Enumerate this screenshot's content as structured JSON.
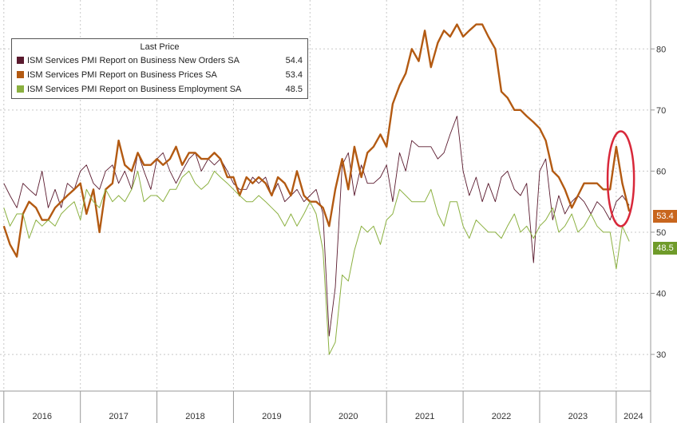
{
  "legend": {
    "title": "Last Price",
    "items": [
      {
        "name": "ISM Services PMI Report on Business New Orders SA",
        "value": "54.4",
        "color": "#5a1a2e"
      },
      {
        "name": "ISM Services PMI Report on Business Prices SA",
        "value": "53.4",
        "color": "#b35a12"
      },
      {
        "name": "ISM Services PMI Report on Business Employment SA",
        "value": "48.5",
        "color": "#8bb040"
      }
    ]
  },
  "tags": {
    "prices": {
      "text": "53.4",
      "color": "#c8661e"
    },
    "employment": {
      "text": "48.5",
      "color": "#6f9b2a"
    }
  },
  "highlight": {
    "color": "#d8283a",
    "x_from": 2023.95,
    "x_to": 2024.17,
    "y_from": 51.5,
    "y_to": 66
  },
  "chart_data": {
    "type": "line",
    "title": "",
    "xlabel": "",
    "ylabel": "",
    "xlim": [
      2015.95,
      2024.45
    ],
    "ylim": [
      24,
      88
    ],
    "yticks": [
      30,
      40,
      50,
      60,
      70,
      80
    ],
    "xticks": [
      "2016",
      "2017",
      "2018",
      "2019",
      "2020",
      "2021",
      "2022",
      "2023",
      "2024"
    ],
    "grid": true,
    "legend_position": "top-left",
    "series": [
      {
        "name": "ISM Services PMI Report on Business New Orders SA",
        "color": "#5a1a2e",
        "width": 0.9,
        "points": [
          [
            2016.0,
            58
          ],
          [
            2016.08,
            56
          ],
          [
            2016.17,
            54
          ],
          [
            2016.25,
            58
          ],
          [
            2016.33,
            57
          ],
          [
            2016.42,
            56
          ],
          [
            2016.5,
            60
          ],
          [
            2016.58,
            54
          ],
          [
            2016.67,
            57
          ],
          [
            2016.75,
            54
          ],
          [
            2016.83,
            58
          ],
          [
            2016.92,
            57
          ],
          [
            2017.0,
            60
          ],
          [
            2017.08,
            61
          ],
          [
            2017.17,
            58
          ],
          [
            2017.25,
            57
          ],
          [
            2017.33,
            60
          ],
          [
            2017.42,
            61
          ],
          [
            2017.5,
            58
          ],
          [
            2017.58,
            60
          ],
          [
            2017.67,
            57
          ],
          [
            2017.75,
            63
          ],
          [
            2017.83,
            60
          ],
          [
            2017.92,
            57
          ],
          [
            2018.0,
            62
          ],
          [
            2018.08,
            63
          ],
          [
            2018.17,
            60
          ],
          [
            2018.25,
            58
          ],
          [
            2018.33,
            60
          ],
          [
            2018.42,
            62
          ],
          [
            2018.5,
            63
          ],
          [
            2018.58,
            60
          ],
          [
            2018.67,
            62
          ],
          [
            2018.75,
            61
          ],
          [
            2018.83,
            62
          ],
          [
            2018.92,
            60
          ],
          [
            2019.0,
            58
          ],
          [
            2019.08,
            57
          ],
          [
            2019.17,
            57
          ],
          [
            2019.25,
            59
          ],
          [
            2019.33,
            58
          ],
          [
            2019.42,
            59
          ],
          [
            2019.5,
            56
          ],
          [
            2019.58,
            58
          ],
          [
            2019.67,
            55
          ],
          [
            2019.75,
            56
          ],
          [
            2019.83,
            57
          ],
          [
            2019.92,
            55
          ],
          [
            2020.0,
            56
          ],
          [
            2020.08,
            57
          ],
          [
            2020.17,
            53
          ],
          [
            2020.25,
            33
          ],
          [
            2020.33,
            41
          ],
          [
            2020.42,
            61
          ],
          [
            2020.5,
            63
          ],
          [
            2020.58,
            56
          ],
          [
            2020.67,
            61
          ],
          [
            2020.75,
            58
          ],
          [
            2020.83,
            58
          ],
          [
            2020.92,
            59
          ],
          [
            2021.0,
            61
          ],
          [
            2021.08,
            55
          ],
          [
            2021.17,
            63
          ],
          [
            2021.25,
            60
          ],
          [
            2021.33,
            65
          ],
          [
            2021.42,
            64
          ],
          [
            2021.5,
            64
          ],
          [
            2021.58,
            64
          ],
          [
            2021.67,
            62
          ],
          [
            2021.75,
            63
          ],
          [
            2021.83,
            66
          ],
          [
            2021.92,
            69
          ],
          [
            2022.0,
            60
          ],
          [
            2022.08,
            56
          ],
          [
            2022.17,
            59
          ],
          [
            2022.25,
            55
          ],
          [
            2022.33,
            58
          ],
          [
            2022.42,
            55
          ],
          [
            2022.5,
            59
          ],
          [
            2022.58,
            60
          ],
          [
            2022.67,
            57
          ],
          [
            2022.75,
            56
          ],
          [
            2022.83,
            58
          ],
          [
            2022.92,
            45
          ],
          [
            2023.0,
            60
          ],
          [
            2023.08,
            62
          ],
          [
            2023.17,
            52
          ],
          [
            2023.25,
            56
          ],
          [
            2023.33,
            53
          ],
          [
            2023.42,
            55
          ],
          [
            2023.5,
            56
          ],
          [
            2023.58,
            55
          ],
          [
            2023.67,
            53
          ],
          [
            2023.75,
            55
          ],
          [
            2023.83,
            54
          ],
          [
            2023.92,
            52
          ],
          [
            2024.0,
            55
          ],
          [
            2024.08,
            56
          ],
          [
            2024.17,
            54.4
          ]
        ]
      },
      {
        "name": "ISM Services PMI Report on Business Prices SA",
        "color": "#b35a12",
        "width": 2.4,
        "points": [
          [
            2016.0,
            51
          ],
          [
            2016.08,
            48
          ],
          [
            2016.17,
            46
          ],
          [
            2016.25,
            53
          ],
          [
            2016.33,
            55
          ],
          [
            2016.42,
            54
          ],
          [
            2016.5,
            52
          ],
          [
            2016.58,
            52
          ],
          [
            2016.67,
            54
          ],
          [
            2016.75,
            55
          ],
          [
            2016.83,
            56
          ],
          [
            2016.92,
            57
          ],
          [
            2017.0,
            58
          ],
          [
            2017.08,
            53
          ],
          [
            2017.17,
            57
          ],
          [
            2017.25,
            50
          ],
          [
            2017.33,
            57
          ],
          [
            2017.42,
            58
          ],
          [
            2017.5,
            65
          ],
          [
            2017.58,
            61
          ],
          [
            2017.67,
            60
          ],
          [
            2017.75,
            63
          ],
          [
            2017.83,
            61
          ],
          [
            2017.92,
            61
          ],
          [
            2018.0,
            62
          ],
          [
            2018.08,
            61
          ],
          [
            2018.17,
            62
          ],
          [
            2018.25,
            64
          ],
          [
            2018.33,
            61
          ],
          [
            2018.42,
            63
          ],
          [
            2018.5,
            63
          ],
          [
            2018.58,
            62
          ],
          [
            2018.67,
            62
          ],
          [
            2018.75,
            63
          ],
          [
            2018.83,
            62
          ],
          [
            2018.92,
            59
          ],
          [
            2019.0,
            59
          ],
          [
            2019.08,
            56
          ],
          [
            2019.17,
            59
          ],
          [
            2019.25,
            58
          ],
          [
            2019.33,
            59
          ],
          [
            2019.42,
            58
          ],
          [
            2019.5,
            56
          ],
          [
            2019.58,
            59
          ],
          [
            2019.67,
            58
          ],
          [
            2019.75,
            56
          ],
          [
            2019.83,
            60
          ],
          [
            2019.92,
            56
          ],
          [
            2020.0,
            55
          ],
          [
            2020.08,
            55
          ],
          [
            2020.17,
            54
          ],
          [
            2020.25,
            51
          ],
          [
            2020.33,
            57
          ],
          [
            2020.42,
            62
          ],
          [
            2020.5,
            57
          ],
          [
            2020.58,
            64
          ],
          [
            2020.67,
            59
          ],
          [
            2020.75,
            63
          ],
          [
            2020.83,
            64
          ],
          [
            2020.92,
            66
          ],
          [
            2021.0,
            64
          ],
          [
            2021.08,
            71
          ],
          [
            2021.17,
            74
          ],
          [
            2021.25,
            76
          ],
          [
            2021.33,
            80
          ],
          [
            2021.42,
            78
          ],
          [
            2021.5,
            83
          ],
          [
            2021.58,
            77
          ],
          [
            2021.67,
            81
          ],
          [
            2021.75,
            83
          ],
          [
            2021.83,
            82
          ],
          [
            2021.92,
            84
          ],
          [
            2022.0,
            82
          ],
          [
            2022.08,
            83
          ],
          [
            2022.17,
            84
          ],
          [
            2022.25,
            84
          ],
          [
            2022.33,
            82
          ],
          [
            2022.42,
            80
          ],
          [
            2022.5,
            73
          ],
          [
            2022.58,
            72
          ],
          [
            2022.67,
            70
          ],
          [
            2022.75,
            70
          ],
          [
            2022.83,
            69
          ],
          [
            2022.92,
            68
          ],
          [
            2023.0,
            67
          ],
          [
            2023.08,
            65
          ],
          [
            2023.17,
            60
          ],
          [
            2023.25,
            59
          ],
          [
            2023.33,
            57
          ],
          [
            2023.42,
            54
          ],
          [
            2023.5,
            56
          ],
          [
            2023.58,
            58
          ],
          [
            2023.67,
            58
          ],
          [
            2023.75,
            58
          ],
          [
            2023.83,
            57
          ],
          [
            2023.92,
            57
          ],
          [
            2024.0,
            64
          ],
          [
            2024.08,
            58
          ],
          [
            2024.17,
            53.4
          ]
        ]
      },
      {
        "name": "ISM Services PMI Report on Business Employment SA",
        "color": "#8bb040",
        "width": 1.0,
        "points": [
          [
            2016.0,
            54
          ],
          [
            2016.08,
            51
          ],
          [
            2016.17,
            53
          ],
          [
            2016.25,
            53
          ],
          [
            2016.33,
            49
          ],
          [
            2016.42,
            52
          ],
          [
            2016.5,
            51
          ],
          [
            2016.58,
            52
          ],
          [
            2016.67,
            51
          ],
          [
            2016.75,
            53
          ],
          [
            2016.83,
            54
          ],
          [
            2016.92,
            55
          ],
          [
            2017.0,
            52
          ],
          [
            2017.08,
            57
          ],
          [
            2017.17,
            55
          ],
          [
            2017.25,
            54
          ],
          [
            2017.33,
            57
          ],
          [
            2017.42,
            55
          ],
          [
            2017.5,
            56
          ],
          [
            2017.58,
            55
          ],
          [
            2017.67,
            57
          ],
          [
            2017.75,
            60
          ],
          [
            2017.83,
            55
          ],
          [
            2017.92,
            56
          ],
          [
            2018.0,
            56
          ],
          [
            2018.08,
            55
          ],
          [
            2018.17,
            57
          ],
          [
            2018.25,
            57
          ],
          [
            2018.33,
            59
          ],
          [
            2018.42,
            60
          ],
          [
            2018.5,
            58
          ],
          [
            2018.58,
            57
          ],
          [
            2018.67,
            58
          ],
          [
            2018.75,
            60
          ],
          [
            2018.83,
            59
          ],
          [
            2018.92,
            58
          ],
          [
            2019.0,
            57
          ],
          [
            2019.08,
            56
          ],
          [
            2019.17,
            55
          ],
          [
            2019.25,
            55
          ],
          [
            2019.33,
            56
          ],
          [
            2019.42,
            55
          ],
          [
            2019.5,
            54
          ],
          [
            2019.58,
            53
          ],
          [
            2019.67,
            51
          ],
          [
            2019.75,
            53
          ],
          [
            2019.83,
            51
          ],
          [
            2019.92,
            53
          ],
          [
            2020.0,
            55
          ],
          [
            2020.08,
            53
          ],
          [
            2020.17,
            47
          ],
          [
            2020.25,
            30
          ],
          [
            2020.33,
            32
          ],
          [
            2020.42,
            43
          ],
          [
            2020.5,
            42
          ],
          [
            2020.58,
            47
          ],
          [
            2020.67,
            51
          ],
          [
            2020.75,
            50
          ],
          [
            2020.83,
            51
          ],
          [
            2020.92,
            48
          ],
          [
            2021.0,
            52
          ],
          [
            2021.08,
            53
          ],
          [
            2021.17,
            57
          ],
          [
            2021.25,
            56
          ],
          [
            2021.33,
            55
          ],
          [
            2021.42,
            55
          ],
          [
            2021.5,
            55
          ],
          [
            2021.58,
            57
          ],
          [
            2021.67,
            53
          ],
          [
            2021.75,
            51
          ],
          [
            2021.83,
            55
          ],
          [
            2021.92,
            55
          ],
          [
            2022.0,
            51
          ],
          [
            2022.08,
            49
          ],
          [
            2022.17,
            52
          ],
          [
            2022.25,
            51
          ],
          [
            2022.33,
            50
          ],
          [
            2022.42,
            50
          ],
          [
            2022.5,
            49
          ],
          [
            2022.58,
            51
          ],
          [
            2022.67,
            53
          ],
          [
            2022.75,
            50
          ],
          [
            2022.83,
            51
          ],
          [
            2022.92,
            49
          ],
          [
            2023.0,
            51
          ],
          [
            2023.08,
            52
          ],
          [
            2023.17,
            54
          ],
          [
            2023.25,
            50
          ],
          [
            2023.33,
            51
          ],
          [
            2023.42,
            53
          ],
          [
            2023.5,
            50
          ],
          [
            2023.58,
            51
          ],
          [
            2023.67,
            53
          ],
          [
            2023.75,
            51
          ],
          [
            2023.83,
            50
          ],
          [
            2023.92,
            50
          ],
          [
            2024.0,
            44
          ],
          [
            2024.08,
            51
          ],
          [
            2024.17,
            48.5
          ]
        ]
      }
    ]
  }
}
